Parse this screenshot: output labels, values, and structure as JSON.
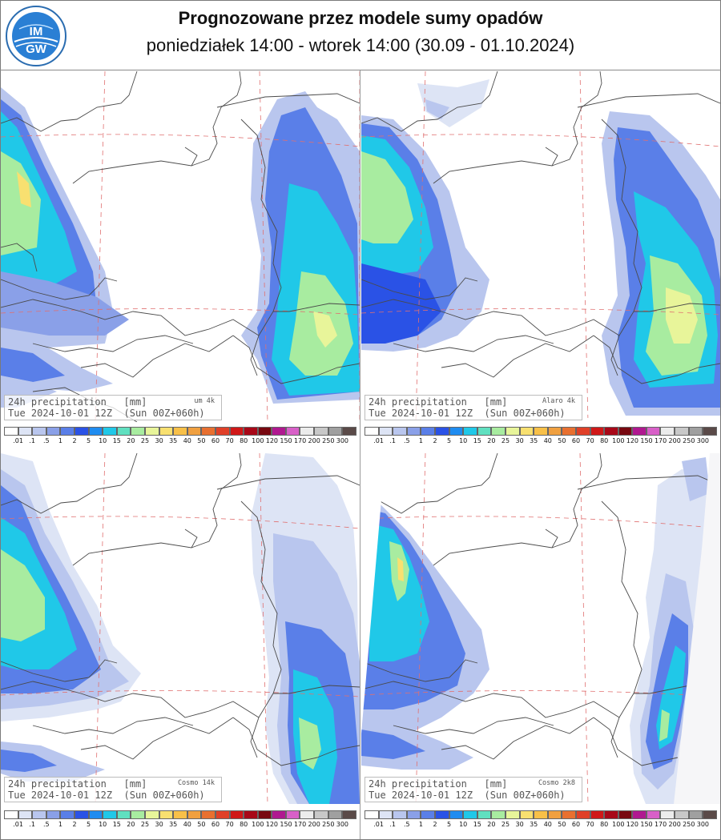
{
  "header": {
    "title": "Prognozowane przez modele sumy opadów",
    "subtitle": "poniedziałek 14:00 - wtorek 14:00 (30.09 - 01.10.2024)",
    "logo_text_top": "IM",
    "logo_text_bottom": "GW"
  },
  "panels": [
    {
      "id": "um4k",
      "line1": "24h precipitation   [mm]",
      "model": "um 4k",
      "line2": "Tue 2024-10-01 12Z  (Sun 00Z+060h)"
    },
    {
      "id": "alaro4k",
      "line1": "24h precipitation   [mm]",
      "model": "Alaro 4k",
      "line2": "Tue 2024-10-01 12Z  (Sun 00Z+060h)"
    },
    {
      "id": "cosmo14k",
      "line1": "24h precipitation   [mm]",
      "model": "Cosmo 14k",
      "line2": "Tue 2024-10-01 12Z  (Sun 00Z+060h)"
    },
    {
      "id": "cosmo2k8",
      "line1": "24h precipitation   [mm]",
      "model": "Cosmo 2k8",
      "line2": "Tue 2024-10-01 12Z  (Sun 00Z+060h)"
    }
  ],
  "legend": {
    "labels": [
      ".01",
      ".1",
      ".5",
      "1",
      "2",
      "5",
      "10",
      "15",
      "20",
      "25",
      "30",
      "35",
      "40",
      "50",
      "60",
      "70",
      "80",
      "100",
      "120",
      "150",
      "170",
      "200",
      "250",
      "300"
    ],
    "colors": [
      "#ffffff",
      "#dde4f5",
      "#b9c6ee",
      "#8aa0e8",
      "#5a7fe8",
      "#2a52e6",
      "#1f8cf0",
      "#20c8e8",
      "#60e0c0",
      "#a8eca0",
      "#e8f59a",
      "#f8e070",
      "#f8c048",
      "#f0a040",
      "#e87030",
      "#e04028",
      "#d01818",
      "#a80818",
      "#780810",
      "#b01890",
      "#d860c8",
      "#ececec",
      "#c8c8c8",
      "#a0a0a0",
      "#5a4a48"
    ]
  },
  "colors": {
    "lightblue": "#b9c6ee",
    "mediumblue": "#8aa0e8",
    "blue": "#2a52e6",
    "azure": "#1f8cf0",
    "cyan": "#20c8e8",
    "green": "#a8eca0",
    "yellow": "#f8e070"
  }
}
